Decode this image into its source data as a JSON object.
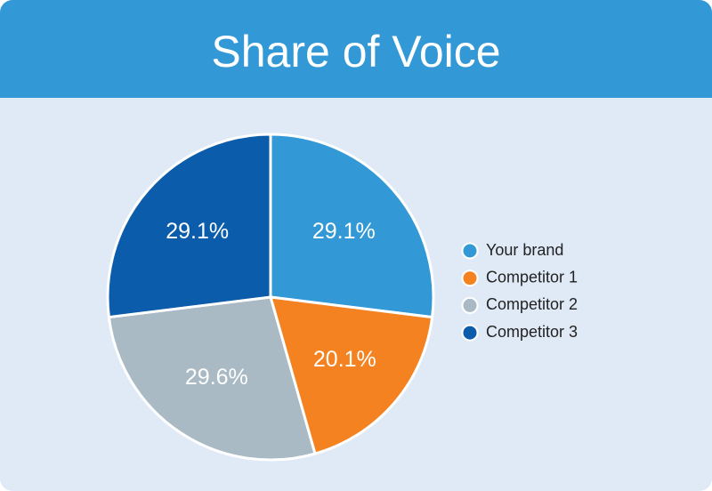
{
  "chart_data": {
    "type": "pie",
    "title": "Share of Voice",
    "categories": [
      "Your brand",
      "Competitor 1",
      "Competitor 2",
      "Competitor 3"
    ],
    "values": [
      29.1,
      20.1,
      29.6,
      29.1
    ],
    "value_labels": [
      "29.1%",
      "20.1%",
      "29.6%",
      "29.1%"
    ],
    "colors": [
      "#3399d6",
      "#f58220",
      "#a9bac5",
      "#0b5cab"
    ],
    "legend": "right"
  }
}
